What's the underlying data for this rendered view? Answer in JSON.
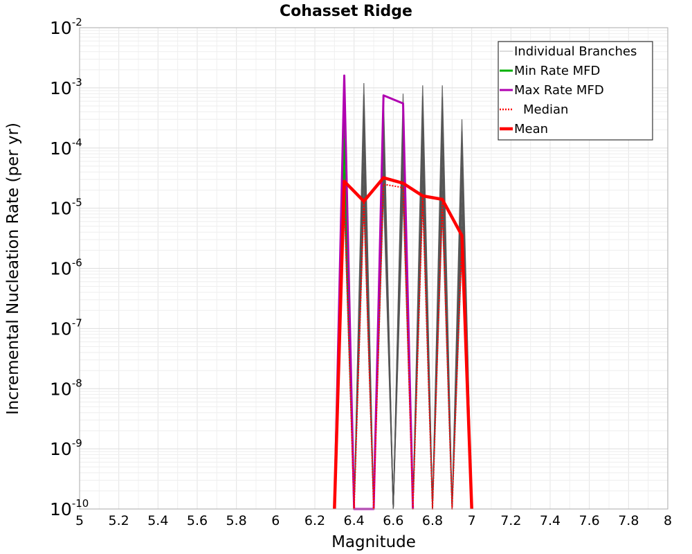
{
  "chart_data": {
    "type": "line",
    "title": "Cohasset Ridge",
    "xlabel": "Magnitude",
    "ylabel": "Incremental Nucleation Rate (per yr)",
    "xlim": [
      5,
      8
    ],
    "ylim": [
      1e-10,
      0.01
    ],
    "yscale": "log",
    "grid": true,
    "legend_position": "top-right",
    "x_ticks": [
      "5",
      "5.2",
      "5.4",
      "5.6",
      "5.8",
      "6",
      "6.2",
      "6.4",
      "6.6",
      "6.8",
      "7",
      "7.2",
      "7.4",
      "7.6",
      "7.8",
      "8"
    ],
    "y_ticks": [
      {
        "base": "10",
        "exp": "-10"
      },
      {
        "base": "10",
        "exp": "-9"
      },
      {
        "base": "10",
        "exp": "-8"
      },
      {
        "base": "10",
        "exp": "-7"
      },
      {
        "base": "10",
        "exp": "-6"
      },
      {
        "base": "10",
        "exp": "-5"
      },
      {
        "base": "10",
        "exp": "-4"
      },
      {
        "base": "10",
        "exp": "-3"
      },
      {
        "base": "10",
        "exp": "-2"
      }
    ],
    "legend": [
      {
        "label": "Individual Branches",
        "color": "#888888",
        "style": "thin"
      },
      {
        "label": "Min Rate MFD",
        "color": "#00b000",
        "style": "solid"
      },
      {
        "label": "Max Rate MFD",
        "color": "#b000b0",
        "style": "solid"
      },
      {
        "label": "Median",
        "color": "#ff0000",
        "style": "dotted"
      },
      {
        "label": "Mean",
        "color": "#ff0000",
        "style": "thick"
      }
    ],
    "series": [
      {
        "name": "Mean",
        "color": "#ff0000",
        "x": [
          6.3,
          6.35,
          6.45,
          6.55,
          6.65,
          6.75,
          6.85,
          6.95,
          7.0
        ],
        "y": [
          1e-10,
          2.8e-05,
          1.3e-05,
          3.2e-05,
          2.6e-05,
          1.6e-05,
          1.4e-05,
          3.5e-06,
          1e-10
        ]
      },
      {
        "name": "Median",
        "color": "#ff0000",
        "x": [
          6.3,
          6.35,
          6.4,
          6.45,
          6.5,
          6.55,
          6.65,
          6.7,
          6.75,
          6.8,
          6.85,
          6.9,
          6.95,
          7.0
        ],
        "y": [
          1e-10,
          1.5e-05,
          1e-10,
          1.4e-05,
          1e-10,
          2.5e-05,
          2.2e-05,
          1e-10,
          1.5e-05,
          1e-10,
          1.3e-05,
          1e-10,
          3e-06,
          1e-10
        ]
      },
      {
        "name": "Max Rate MFD",
        "color": "#b000b0",
        "x": [
          6.3,
          6.35,
          6.4,
          6.5,
          6.55,
          6.65,
          6.7
        ],
        "y": [
          1e-10,
          0.0016,
          1e-10,
          1e-10,
          0.00075,
          0.00055,
          1e-10
        ]
      },
      {
        "name": "Min Rate MFD",
        "color": "#00b000",
        "x": [
          6.3,
          6.35,
          6.4
        ],
        "y": [
          1e-10,
          0.00014,
          1e-10
        ]
      }
    ],
    "branches": {
      "name": "Individual Branches",
      "color": "#555555",
      "peaks": [
        {
          "x": 6.35,
          "low": 1e-05,
          "high": 0.0016
        },
        {
          "x": 6.45,
          "low": 1e-05,
          "high": 0.0012
        },
        {
          "x": 6.55,
          "low": 1.8e-05,
          "high": 0.0007
        },
        {
          "x": 6.65,
          "low": 1.5e-05,
          "high": 0.0008
        },
        {
          "x": 6.75,
          "low": 1.3e-05,
          "high": 0.0011
        },
        {
          "x": 6.85,
          "low": 8e-06,
          "high": 0.0011
        },
        {
          "x": 6.95,
          "low": 2e-06,
          "high": 0.0003
        }
      ],
      "zero": 1e-10
    }
  }
}
